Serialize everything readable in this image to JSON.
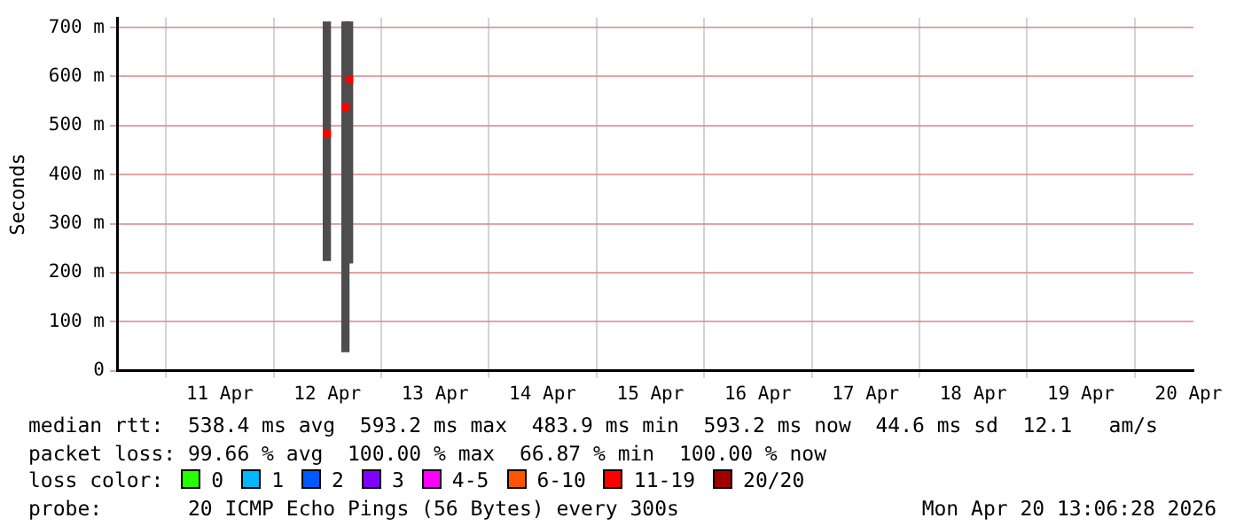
{
  "chart_data": {
    "type": "bar",
    "ylabel": "Seconds",
    "xlim": [
      "2026-04-10T13:06",
      "2026-04-20T13:06"
    ],
    "xticks": [
      {
        "value": "2026-04-11T12:00",
        "label": "11 Apr"
      },
      {
        "value": "2026-04-12T12:00",
        "label": "12 Apr"
      },
      {
        "value": "2026-04-13T12:00",
        "label": "13 Apr"
      },
      {
        "value": "2026-04-14T12:00",
        "label": "14 Apr"
      },
      {
        "value": "2026-04-15T12:00",
        "label": "15 Apr"
      },
      {
        "value": "2026-04-16T12:00",
        "label": "16 Apr"
      },
      {
        "value": "2026-04-17T12:00",
        "label": "17 Apr"
      },
      {
        "value": "2026-04-18T12:00",
        "label": "18 Apr"
      },
      {
        "value": "2026-04-19T12:00",
        "label": "19 Apr"
      },
      {
        "value": "2026-04-20T12:00",
        "label": "20 Apr"
      }
    ],
    "ylim": [
      0,
      720
    ],
    "yticks": [
      0,
      {
        "value": 100,
        "label": "100 m"
      },
      {
        "value": 200,
        "label": "200 m"
      },
      {
        "value": 300,
        "label": "300 m"
      },
      {
        "value": 400,
        "label": "400 m"
      },
      {
        "value": 500,
        "label": "500 m"
      },
      {
        "value": 600,
        "label": "600 m"
      },
      {
        "value": 700,
        "label": "700 m"
      }
    ],
    "grid": true,
    "legend": false,
    "series": [
      {
        "color": "#4d4d4d",
        "x": [
          "2026-04-12T11:53",
          "2026-04-12T16:01",
          "2026-04-12T16:50"
        ],
        "base": [
          225,
          39,
          220
        ],
        "values": [
          486,
          672,
          491
        ]
      },
      {
        "type": "scatter",
        "marker": "square",
        "color": "#ff0000",
        "x": [
          "2026-04-12T11:53",
          "2026-04-12T16:01",
          "2026-04-12T16:50"
        ],
        "values": [
          484,
          538,
          593
        ]
      }
    ],
    "annotations": [
      "median rtt:  538.4 ms avg  593.2 ms max  483.9 ms min  593.2 ms now  44.6 ms sd  12.1   am/s",
      "packet loss: 99.66 % avg  100.00 % max  66.87 % min  100.00 % now",
      "loss color:",
      "0",
      "1",
      "2",
      "3",
      "4-5",
      "6-10",
      "11-19",
      "20/20",
      "probe:       20 ICMP Echo Pings (56 Bytes) every 300s",
      "Mon Apr 20 13:06:28 2026"
    ]
  }
}
